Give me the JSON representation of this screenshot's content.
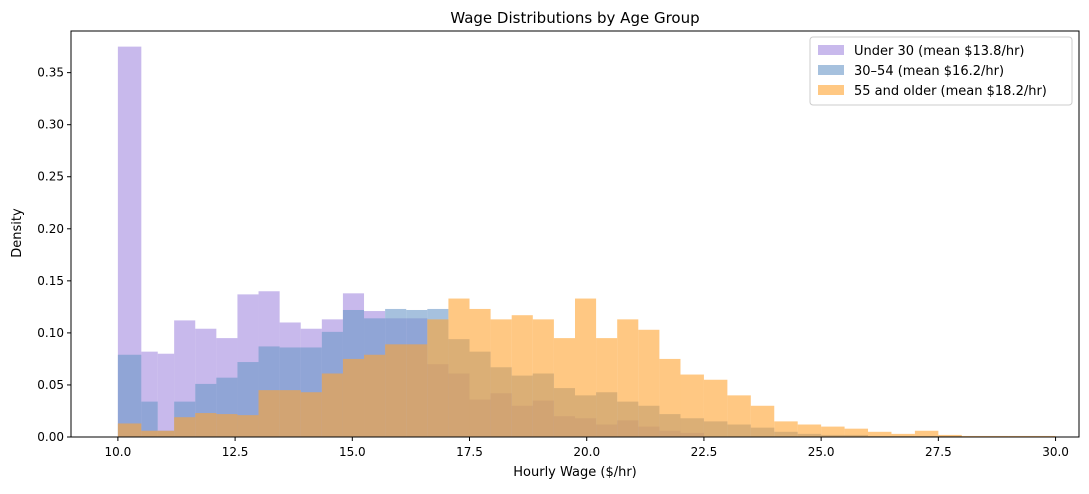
{
  "chart_data": {
    "type": "histogram",
    "title": "Wage Distributions by Age Group",
    "xlabel": "Hourly Wage ($/hr)",
    "ylabel": "Density",
    "xlim": [
      9.0,
      30.5
    ],
    "ylim": [
      0,
      0.39
    ],
    "xticks": [
      10.0,
      12.5,
      15.0,
      17.5,
      20.0,
      22.5,
      25.0,
      27.5,
      30.0
    ],
    "xtick_labels": [
      "10.0",
      "12.5",
      "15.0",
      "17.5",
      "20.0",
      "22.5",
      "25.0",
      "27.5",
      "30.0"
    ],
    "yticks": [
      0,
      0.05,
      0.1,
      0.15,
      0.2,
      0.25,
      0.3,
      0.35
    ],
    "ytick_labels": [
      "0.00",
      "0.05",
      "0.10",
      "0.15",
      "0.20",
      "0.25",
      "0.30",
      "0.35"
    ],
    "grid": false,
    "legend_position": "top-right",
    "series": [
      {
        "name": "Under 30  (mean $13.8/hr)",
        "color": "#9b7fdc",
        "alpha": 0.55,
        "bins": [
          [
            10.0,
            10.5,
            0.375
          ],
          [
            10.5,
            10.85,
            0.082
          ],
          [
            10.85,
            11.2,
            0.08
          ],
          [
            11.2,
            11.65,
            0.112
          ],
          [
            11.65,
            12.1,
            0.104
          ],
          [
            12.1,
            12.55,
            0.095
          ],
          [
            12.55,
            13.0,
            0.137
          ],
          [
            13.0,
            13.45,
            0.14
          ],
          [
            13.45,
            13.9,
            0.11
          ],
          [
            13.9,
            14.35,
            0.104
          ],
          [
            14.35,
            14.8,
            0.113
          ],
          [
            14.8,
            15.25,
            0.138
          ],
          [
            15.25,
            15.7,
            0.121
          ],
          [
            15.7,
            16.15,
            0.114
          ],
          [
            16.15,
            16.6,
            0.114
          ],
          [
            16.6,
            17.05,
            0.07
          ],
          [
            17.05,
            17.5,
            0.061
          ],
          [
            17.5,
            17.95,
            0.036
          ],
          [
            17.95,
            18.4,
            0.042
          ],
          [
            18.4,
            18.85,
            0.03
          ],
          [
            18.85,
            19.3,
            0.035
          ],
          [
            19.3,
            19.75,
            0.02
          ],
          [
            19.75,
            20.2,
            0.018
          ],
          [
            20.2,
            20.65,
            0.012
          ],
          [
            20.65,
            21.1,
            0.016
          ],
          [
            21.1,
            21.55,
            0.01
          ],
          [
            21.55,
            22.0,
            0.006
          ],
          [
            22.0,
            22.5,
            0.004
          ]
        ]
      },
      {
        "name": "30–54  (mean $16.2/hr)",
        "color": "#6a97c8",
        "alpha": 0.6,
        "bins": [
          [
            10.0,
            10.5,
            0.079
          ],
          [
            10.5,
            10.85,
            0.034
          ],
          [
            10.85,
            11.2,
            0.006
          ],
          [
            11.2,
            11.65,
            0.034
          ],
          [
            11.65,
            12.1,
            0.051
          ],
          [
            12.1,
            12.55,
            0.057
          ],
          [
            12.55,
            13.0,
            0.072
          ],
          [
            13.0,
            13.45,
            0.087
          ],
          [
            13.45,
            13.9,
            0.086
          ],
          [
            13.9,
            14.35,
            0.086
          ],
          [
            14.35,
            14.8,
            0.101
          ],
          [
            14.8,
            15.25,
            0.122
          ],
          [
            15.25,
            15.7,
            0.114
          ],
          [
            15.7,
            16.15,
            0.123
          ],
          [
            16.15,
            16.6,
            0.122
          ],
          [
            16.6,
            17.05,
            0.123
          ],
          [
            17.05,
            17.5,
            0.094
          ],
          [
            17.5,
            17.95,
            0.082
          ],
          [
            17.95,
            18.4,
            0.067
          ],
          [
            18.4,
            18.85,
            0.059
          ],
          [
            18.85,
            19.3,
            0.061
          ],
          [
            19.3,
            19.75,
            0.047
          ],
          [
            19.75,
            20.2,
            0.04
          ],
          [
            20.2,
            20.65,
            0.043
          ],
          [
            20.65,
            21.1,
            0.034
          ],
          [
            21.1,
            21.55,
            0.03
          ],
          [
            21.55,
            22.0,
            0.022
          ],
          [
            22.0,
            22.5,
            0.018
          ],
          [
            22.5,
            23.0,
            0.015
          ],
          [
            23.0,
            23.5,
            0.012
          ],
          [
            23.5,
            24.0,
            0.009
          ],
          [
            24.0,
            24.5,
            0.005
          ],
          [
            24.5,
            25.0,
            0.003
          ],
          [
            25.0,
            26.0,
            0.002
          ],
          [
            26.0,
            27.0,
            0.001
          ],
          [
            27.0,
            28.0,
            0.001
          ]
        ]
      },
      {
        "name": "55 and older  (mean $18.2/hr)",
        "color": "#ffa330",
        "alpha": 0.6,
        "bins": [
          [
            10.0,
            10.5,
            0.013
          ],
          [
            10.5,
            11.2,
            0.006
          ],
          [
            11.2,
            11.65,
            0.019
          ],
          [
            11.65,
            12.1,
            0.023
          ],
          [
            12.1,
            12.55,
            0.022
          ],
          [
            12.55,
            13.0,
            0.021
          ],
          [
            13.0,
            13.45,
            0.045
          ],
          [
            13.45,
            13.9,
            0.045
          ],
          [
            13.9,
            14.35,
            0.043
          ],
          [
            14.35,
            14.8,
            0.061
          ],
          [
            14.8,
            15.25,
            0.075
          ],
          [
            15.25,
            15.7,
            0.079
          ],
          [
            15.7,
            16.15,
            0.089
          ],
          [
            16.15,
            16.6,
            0.089
          ],
          [
            16.6,
            17.05,
            0.113
          ],
          [
            17.05,
            17.5,
            0.133
          ],
          [
            17.5,
            17.95,
            0.123
          ],
          [
            17.95,
            18.4,
            0.113
          ],
          [
            18.4,
            18.85,
            0.117
          ],
          [
            18.85,
            19.3,
            0.113
          ],
          [
            19.3,
            19.75,
            0.095
          ],
          [
            19.75,
            20.2,
            0.133
          ],
          [
            20.2,
            20.65,
            0.095
          ],
          [
            20.65,
            21.1,
            0.113
          ],
          [
            21.1,
            21.55,
            0.103
          ],
          [
            21.55,
            22.0,
            0.075
          ],
          [
            22.0,
            22.5,
            0.06
          ],
          [
            22.5,
            23.0,
            0.055
          ],
          [
            23.0,
            23.5,
            0.04
          ],
          [
            23.5,
            24.0,
            0.03
          ],
          [
            24.0,
            24.5,
            0.015
          ],
          [
            24.5,
            25.0,
            0.012
          ],
          [
            25.0,
            25.5,
            0.01
          ],
          [
            25.5,
            26.0,
            0.008
          ],
          [
            26.0,
            26.5,
            0.005
          ],
          [
            26.5,
            27.0,
            0.003
          ],
          [
            27.0,
            27.5,
            0.006
          ],
          [
            27.5,
            28.0,
            0.002
          ],
          [
            28.0,
            29.0,
            0.001
          ],
          [
            29.0,
            30.0,
            0.001
          ]
        ]
      }
    ]
  }
}
